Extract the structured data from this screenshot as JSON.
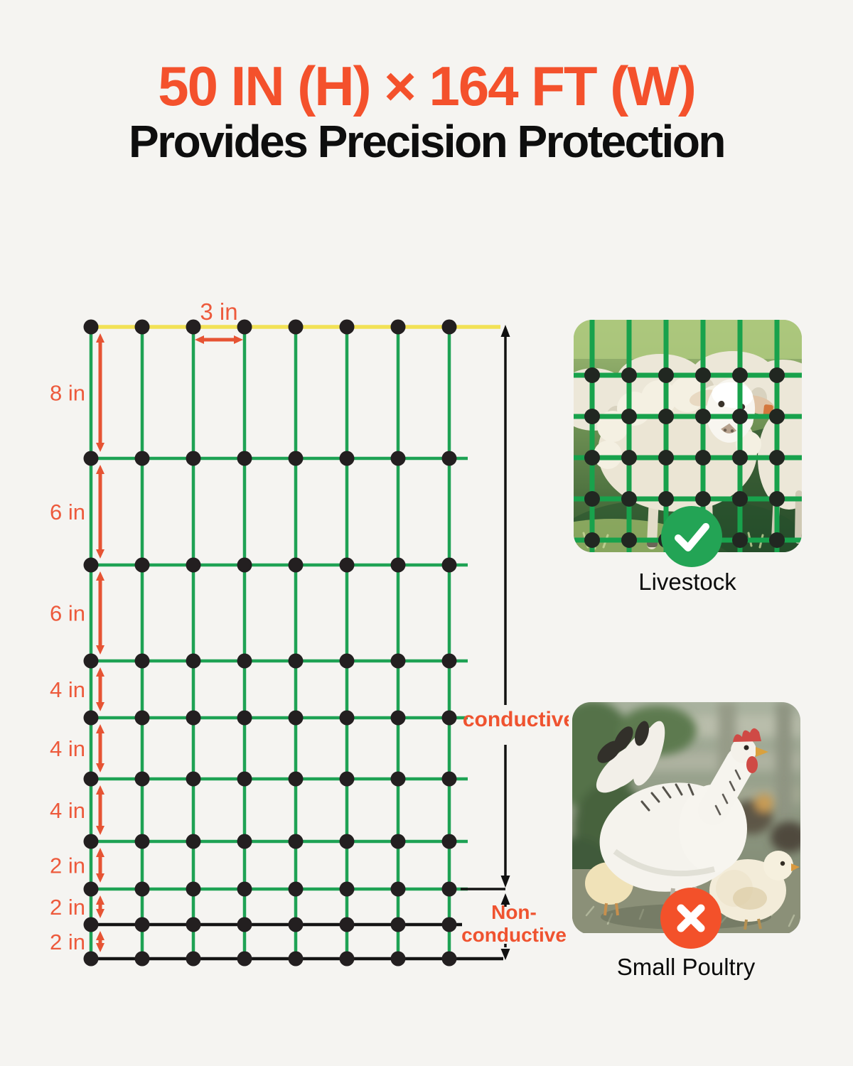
{
  "page": {
    "background": "#f5f4f1"
  },
  "header": {
    "title": "50 IN (H) × 164 FT (W)",
    "subtitle": "Provides Precision Protection",
    "title_color": "#f4512c",
    "subtitle_color": "#0e0e0e"
  },
  "diagram": {
    "type": "fence-netting-dimension-diagram",
    "mesh_width_label": "3 in",
    "horizontal_spacing_inches": 3,
    "row_gap_labels": [
      "8 in",
      "6 in",
      "6 in",
      "4 in",
      "4 in",
      "4 in",
      "2 in",
      "2 in",
      "2 in"
    ],
    "row_gap_inches": [
      8,
      6,
      6,
      4,
      4,
      4,
      2,
      2,
      2
    ],
    "columns": 8,
    "rows": 10,
    "conductive_label": "conductive",
    "non_conductive_label_lines": [
      "Non-",
      "conductive"
    ],
    "colors": {
      "top_wire": "#f2e155",
      "conductive_wire": "#1ea254",
      "non_conductive_wire": "#141414",
      "dimension_arrow": "#e65333",
      "dimension_label": "#ed5a3c",
      "callout_label": "#ef5330",
      "knot": "#231f20",
      "annotation_arrow": "#111111"
    }
  },
  "cards": {
    "livestock": {
      "label": "Livestock",
      "badge_icon": "check-icon",
      "badge_color": "#23a455"
    },
    "poultry": {
      "label": "Small Poultry",
      "badge_icon": "cross-icon",
      "badge_color": "#f3512a"
    }
  }
}
